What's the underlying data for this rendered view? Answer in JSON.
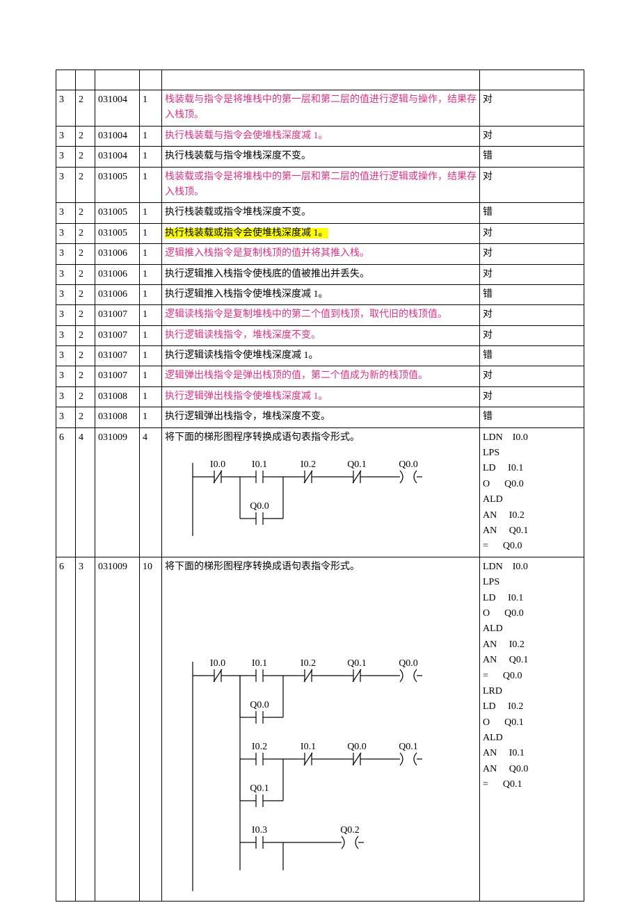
{
  "table": {
    "col_widths": {
      "a": 28,
      "b": 28,
      "c": 64,
      "d": 32,
      "f": 150
    },
    "rows": [
      {
        "a": "",
        "b": "",
        "c": "",
        "d": "",
        "e": "",
        "f": "",
        "pink": false,
        "highlight": false
      },
      {
        "a": "3",
        "b": "2",
        "c": "031004",
        "d": "1",
        "e": "栈装载与指令是将堆栈中的第一层和第二层的值进行逻辑与操作，结果存入栈顶。",
        "f": "对",
        "pink": true,
        "highlight": false
      },
      {
        "a": "3",
        "b": "2",
        "c": "031004",
        "d": "1",
        "e": "执行栈装载与指令会使堆栈深度减 1。",
        "f": "对",
        "pink": true,
        "highlight": false
      },
      {
        "a": "3",
        "b": "2",
        "c": "031004",
        "d": "1",
        "e": "执行栈装载与指令堆栈深度不变。",
        "f": "错",
        "pink": false,
        "highlight": false
      },
      {
        "a": "3",
        "b": "2",
        "c": "031005",
        "d": "1",
        "e": "栈装载或指令是将堆栈中的第一层和第二层的值进行逻辑或操作，结果存入栈顶。",
        "f": "对",
        "pink": true,
        "highlight": false
      },
      {
        "a": "3",
        "b": "2",
        "c": "031005",
        "d": "1",
        "e": "执行栈装载或指令堆栈深度不变。",
        "f": "错",
        "pink": false,
        "highlight": false
      },
      {
        "a": "3",
        "b": "2",
        "c": "031005",
        "d": "1",
        "e": "执行栈装载或指令会使堆栈深度减 1。",
        "f": "对",
        "pink": false,
        "highlight": true
      },
      {
        "a": "3",
        "b": "2",
        "c": "031006",
        "d": "1",
        "e": "逻辑推入栈指令是复制栈顶的值并将其推入栈。",
        "f": "对",
        "pink": true,
        "highlight": false
      },
      {
        "a": "3",
        "b": "2",
        "c": "031006",
        "d": "1",
        "e": "执行逻辑推入栈指令使栈底的值被推出并丢失。",
        "f": "对",
        "pink": false,
        "highlight": false
      },
      {
        "a": "3",
        "b": "2",
        "c": "031006",
        "d": "1",
        "e": "执行逻辑推入栈指令使堆栈深度减 1。",
        "f": "错",
        "pink": false,
        "highlight": false
      },
      {
        "a": "3",
        "b": "2",
        "c": "031007",
        "d": "1",
        "e": "逻辑读栈指令是复制堆栈中的第二个值到栈顶，取代旧的栈顶值。",
        "f": "对",
        "pink": true,
        "highlight": false
      },
      {
        "a": "3",
        "b": "2",
        "c": "031007",
        "d": "1",
        "e": "执行逻辑读栈指令，堆栈深度不变。",
        "f": "对",
        "pink": true,
        "highlight": false
      },
      {
        "a": "3",
        "b": "2",
        "c": "031007",
        "d": "1",
        "e": "执行逻辑读栈指令使堆栈深度减 1。",
        "f": "错",
        "pink": false,
        "highlight": false
      },
      {
        "a": "3",
        "b": "2",
        "c": "031007",
        "d": "1",
        "e": "逻辑弹出栈指令是弹出栈顶的值，第二个值成为新的栈顶值。",
        "f": "对",
        "pink": true,
        "highlight": false
      },
      {
        "a": "3",
        "b": "2",
        "c": "031008",
        "d": "1",
        "e": "执行逻辑弹出栈指令使堆栈深度减 1。",
        "f": "对",
        "pink": true,
        "highlight": false
      },
      {
        "a": "3",
        "b": "2",
        "c": "031008",
        "d": "1",
        "e": "执行逻辑弹出栈指令，堆栈深度不变。",
        "f": "错",
        "pink": false,
        "highlight": false
      }
    ],
    "ladder1": {
      "a": "6",
      "b": "4",
      "c": "031009",
      "d": "4",
      "prompt": "将下面的梯形图程序转换成语句表指令形式。",
      "stl": [
        "LDN    I0.0",
        "LPS",
        "LD     I0.1",
        "O      Q0.0",
        "ALD",
        "AN     I0.2",
        "AN     Q0.1",
        "=      Q0.0"
      ],
      "diagram": {
        "labels": {
          "i00": "I0.0",
          "i01": "I0.1",
          "i02": "I0.2",
          "q01": "Q0.1",
          "q00": "Q0.0",
          "q00b": "Q0.0"
        }
      }
    },
    "ladder2": {
      "a": "6",
      "b": "3",
      "c": "031009",
      "d": "10",
      "prompt": "将下面的梯形图程序转换成语句表指令形式。",
      "stl": [
        "LDN    I0.0",
        "LPS",
        "LD     I0.1",
        "O      Q0.0",
        "ALD",
        "AN     I0.2",
        "AN     Q0.1",
        "=      Q0.0",
        "LRD",
        "LD     I0.2",
        "O      Q0.1",
        "ALD",
        "AN     I0.1",
        "AN     Q0.0",
        "=      Q0.1"
      ],
      "diagram": {
        "labels": {
          "i00": "I0.0",
          "i01": "I0.1",
          "i02": "I0.2",
          "q01": "Q0.1",
          "q00": "Q0.0",
          "q00b": "Q0.0",
          "i02b": "I0.2",
          "i01b": "I0.1",
          "q00c": "Q0.0",
          "q01b": "Q0.1",
          "q01c": "Q0.1",
          "i03": "I0.3",
          "q02": "Q0.2"
        }
      }
    }
  },
  "colors": {
    "text": "#000000",
    "pink": "#d63384",
    "highlight_bg": "#ffff00",
    "border": "#000000",
    "bg": "#ffffff"
  }
}
